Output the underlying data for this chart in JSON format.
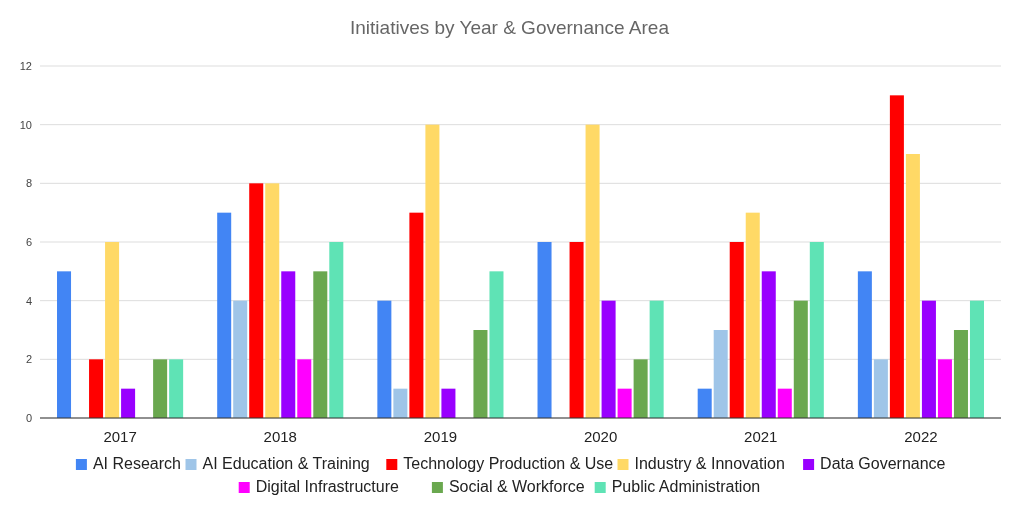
{
  "chart_data": {
    "type": "bar",
    "title": "Initiatives by Year & Governance Area",
    "categories": [
      "2017",
      "2018",
      "2019",
      "2020",
      "2021",
      "2022"
    ],
    "series": [
      {
        "name": "AI Research",
        "color": "#4285f4",
        "values": [
          5,
          7,
          4,
          6,
          1,
          5
        ]
      },
      {
        "name": "AI Education & Training",
        "color": "#9fc5e8",
        "values": [
          0,
          4,
          1,
          0,
          3,
          2
        ]
      },
      {
        "name": "Technology Production & Use",
        "color": "#ff0000",
        "values": [
          2,
          8,
          7,
          6,
          6,
          11
        ]
      },
      {
        "name": "Industry & Innovation",
        "color": "#ffd966",
        "values": [
          6,
          8,
          10,
          10,
          7,
          9
        ]
      },
      {
        "name": "Data Governance",
        "color": "#9900ff",
        "values": [
          1,
          5,
          1,
          4,
          5,
          4
        ]
      },
      {
        "name": "Digital Infrastructure",
        "color": "#ff00ff",
        "values": [
          0,
          2,
          0,
          1,
          1,
          2
        ]
      },
      {
        "name": "Social & Workforce",
        "color": "#6aa84f",
        "values": [
          2,
          5,
          3,
          2,
          4,
          3
        ]
      },
      {
        "name": "Public Administration",
        "color": "#5fe3b5",
        "values": [
          2,
          6,
          5,
          4,
          6,
          4
        ]
      }
    ],
    "ylim": [
      0,
      12
    ],
    "yticks": [
      0,
      2,
      4,
      6,
      8,
      10,
      12
    ],
    "grid": "y",
    "legend": "bottom"
  }
}
